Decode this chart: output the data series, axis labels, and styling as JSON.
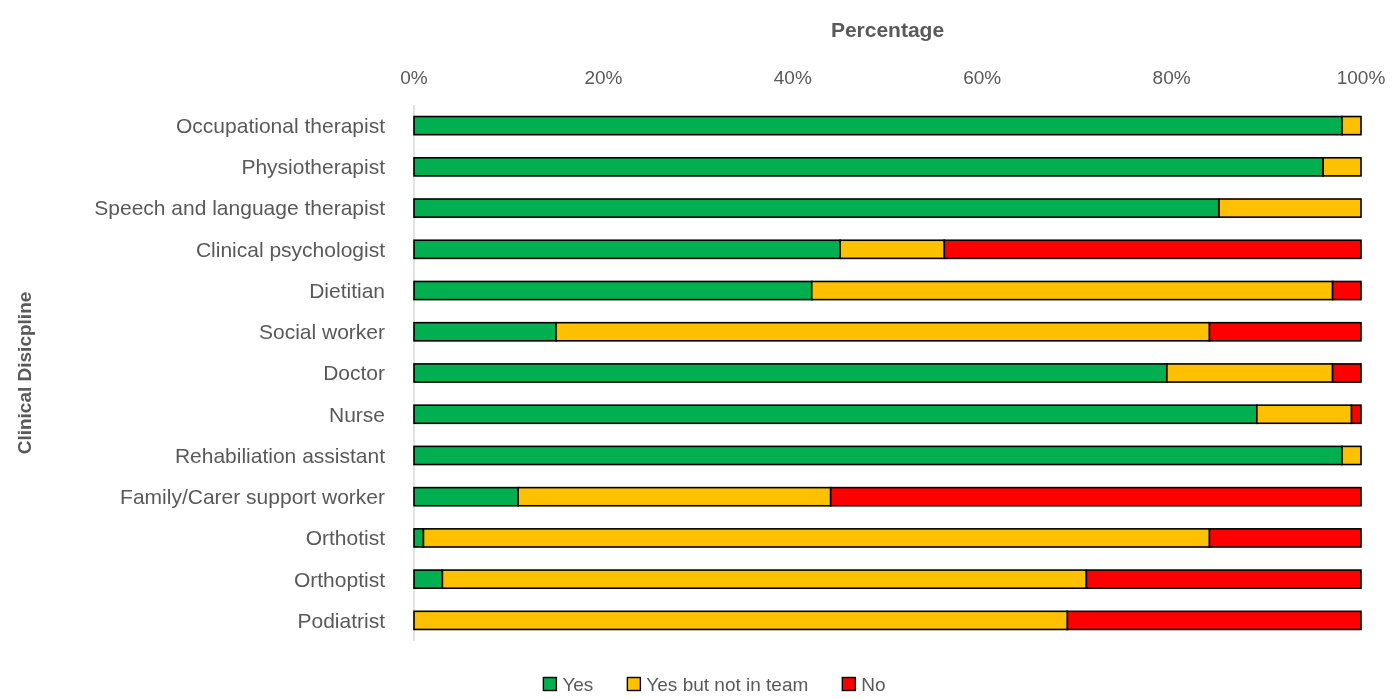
{
  "chart_data": {
    "type": "bar",
    "orientation": "horizontal",
    "stacked": true,
    "title": "Percentage",
    "ylabel": "Clinical Disicpline",
    "categories": [
      "Occupational therapist",
      "Physiotherapist",
      "Speech and language therapist",
      "Clinical psychologist",
      "Dietitian",
      "Social worker",
      "Doctor",
      "Nurse",
      "Rehabiliation assistant",
      "Family/Carer support worker",
      "Orthotist",
      "Orthoptist",
      "Podiatrist"
    ],
    "series": [
      {
        "name": "Yes",
        "color": "#00b050",
        "values": [
          98,
          96,
          85,
          45,
          42,
          15,
          79.5,
          89,
          98,
          11,
          1,
          3,
          0
        ]
      },
      {
        "name": "Yes but not in team",
        "color": "#ffc000",
        "values": [
          2,
          4,
          15,
          11,
          55,
          69,
          17.5,
          10,
          2,
          33,
          83,
          68,
          69
        ]
      },
      {
        "name": "No",
        "color": "#ff0000",
        "values": [
          null,
          null,
          null,
          44,
          3,
          16,
          3,
          1,
          null,
          56,
          16,
          29,
          31
        ]
      }
    ],
    "xlim": [
      0,
      100
    ],
    "xticks": [
      {
        "value": 0,
        "label": "0%"
      },
      {
        "value": 20,
        "label": "20%"
      },
      {
        "value": 40,
        "label": "40%"
      },
      {
        "value": 60,
        "label": "60%"
      },
      {
        "value": 80,
        "label": "80%"
      },
      {
        "value": 100,
        "label": "100%"
      }
    ],
    "legend": "bottom"
  }
}
